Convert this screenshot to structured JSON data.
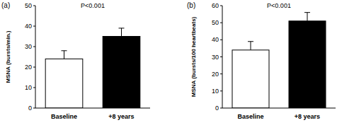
{
  "chart_data": [
    {
      "type": "bar",
      "title": "(a)",
      "annotations": [
        "P<0.001"
      ],
      "y_label": "MSNA (bursts/min.)",
      "categories": [
        "Baseline",
        "+8 years"
      ],
      "values": [
        24,
        35
      ],
      "errors": [
        4,
        4
      ],
      "colors": [
        "#ffffff",
        "#000000"
      ],
      "ylim": [
        0,
        50
      ],
      "yticks": [
        0,
        10,
        20,
        30,
        40,
        50
      ]
    },
    {
      "type": "bar",
      "title": "(b)",
      "annotations": [
        "P<0.001"
      ],
      "y_label": "MSNA (bursts/100 heartbeats)",
      "categories": [
        "Baseline",
        "+8 years"
      ],
      "values": [
        34,
        51
      ],
      "errors": [
        5,
        5
      ],
      "colors": [
        "#ffffff",
        "#000000"
      ],
      "ylim": [
        0,
        60
      ],
      "yticks": [
        0,
        10,
        20,
        30,
        40,
        50,
        60
      ]
    }
  ]
}
